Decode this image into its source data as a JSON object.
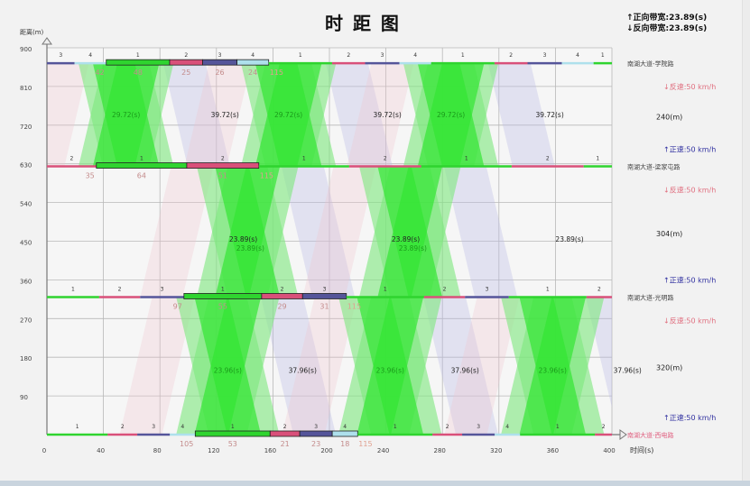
{
  "chart_data": {
    "type": "line",
    "title": "时 距 图",
    "xlabel": "时间(s)",
    "ylabel": "距离(m)",
    "xlim": [
      0,
      400
    ],
    "ylim": [
      0,
      900
    ],
    "xticks": [
      "0",
      "40",
      "80",
      "120",
      "160",
      "200",
      "240",
      "280",
      "320",
      "360",
      "400"
    ],
    "yticks": [
      "90",
      "180",
      "270",
      "360",
      "450",
      "540",
      "630",
      "720",
      "810",
      "900"
    ],
    "grid": true,
    "legend": {
      "placement": "top-right",
      "forward": "↑正向带宽:23.89(s)",
      "reverse": "↓反向带宽:23.89(s)"
    },
    "speed_mps": 13.889,
    "phase_colors": {
      "1": "#2fd42f",
      "2": "#d9507a",
      "3": "#55559a",
      "4": "#aee0ec"
    },
    "band_colors": {
      "bandwidth": "#33e633",
      "green_phase": "#7de87d",
      "reverse_other": "#b9b9e6",
      "forward_other": "#f0c4cc"
    },
    "intersections": [
      {
        "name": "南湖大道-西电路",
        "distance": 0,
        "offset": 105,
        "offset_label": "105",
        "cycle": 115,
        "cycle_label": "115",
        "name_color": "#e06080",
        "phases": [
          {
            "phase": "1",
            "duration": 53,
            "label": "53"
          },
          {
            "phase": "2",
            "duration": 21,
            "label": "21"
          },
          {
            "phase": "3",
            "duration": 23,
            "label": "23"
          },
          {
            "phase": "4",
            "duration": 18,
            "label": "18"
          }
        ]
      },
      {
        "name": "南湖大道-光明路",
        "distance": 320,
        "offset": 97,
        "offset_label": "97",
        "cycle": 115,
        "cycle_label": "115",
        "name_color": "#444444",
        "phases": [
          {
            "phase": "1",
            "duration": 55,
            "label": "55"
          },
          {
            "phase": "2",
            "duration": 29,
            "label": "29"
          },
          {
            "phase": "3",
            "duration": 31,
            "label": "31"
          }
        ]
      },
      {
        "name": "南湖大道-梁家屯路",
        "distance": 624,
        "offset": 35,
        "offset_label": "35",
        "cycle": 115,
        "cycle_label": "115",
        "name_color": "#444444",
        "phases": [
          {
            "phase": "1",
            "duration": 64,
            "label": "64"
          },
          {
            "phase": "2",
            "duration": 51,
            "label": "51"
          }
        ]
      },
      {
        "name": "南湖大道-学院路",
        "distance": 864,
        "offset": 42,
        "offset_label": "42",
        "cycle": 115,
        "cycle_label": "115",
        "name_color": "#444444",
        "phases": [
          {
            "phase": "1",
            "duration": 48,
            "label": "48"
          },
          {
            "phase": "2",
            "duration": 25,
            "label": "25"
          },
          {
            "phase": "3",
            "duration": 26,
            "label": "26"
          },
          {
            "phase": "4",
            "duration": 24,
            "label": "24"
          }
        ]
      }
    ],
    "segments": [
      {
        "from": 0,
        "to": 320,
        "length_label": "320(m)",
        "up_speed": "↑正速:50 km/h",
        "down_speed": "↓反速:50 km/h",
        "band_centers": [
          128,
          243,
          358
        ],
        "bandwidth": 23.96,
        "labels": [
          {
            "t": 128,
            "d": 150,
            "text": "23.96(s)",
            "color": "#1a9a1a"
          },
          {
            "t": 243,
            "d": 150,
            "text": "23.96(s)",
            "color": "#1a9a1a"
          },
          {
            "t": 358,
            "d": 150,
            "text": "23.96(s)",
            "color": "#1a9a1a"
          },
          {
            "t": 181,
            "d": 150,
            "text": "37.96(s)",
            "color": "#222222"
          },
          {
            "t": 296,
            "d": 150,
            "text": "37.96(s)",
            "color": "#222222"
          },
          {
            "t": 411,
            "d": 150,
            "text": "37.96(s)",
            "color": "#222222"
          }
        ]
      },
      {
        "from": 320,
        "to": 624,
        "length_label": "304(m)",
        "up_speed": "↑正速:50 km/h",
        "down_speed": "↓反速:50 km/h",
        "band_centers": [
          142,
          257
        ],
        "bandwidth": 23.89,
        "labels": [
          {
            "t": 139,
            "d": 455,
            "text": "23.89(s)",
            "color": "#222222"
          },
          {
            "t": 144,
            "d": 455,
            "text": "23.89(s)",
            "color": "#1a9a1a"
          },
          {
            "t": 254,
            "d": 455,
            "text": "23.89(s)",
            "color": "#222222"
          },
          {
            "t": 259,
            "d": 455,
            "text": "23.89(s)",
            "color": "#1a9a1a"
          },
          {
            "t": 370,
            "d": 455,
            "text": "23.89(s)",
            "color": "#222222"
          }
        ]
      },
      {
        "from": 624,
        "to": 864,
        "length_label": "240(m)",
        "up_speed": "↑正速:50 km/h",
        "down_speed": "↓反速:50 km/h",
        "band_centers": [
          56,
          171,
          286
        ],
        "bandwidth": 29.72,
        "labels": [
          {
            "t": 56,
            "d": 745,
            "text": "29.72(s)",
            "color": "#1a9a1a"
          },
          {
            "t": 171,
            "d": 745,
            "text": "29.72(s)",
            "color": "#1a9a1a"
          },
          {
            "t": 286,
            "d": 745,
            "text": "29.72(s)",
            "color": "#1a9a1a"
          },
          {
            "t": 126,
            "d": 745,
            "text": "39.72(s)",
            "color": "#222222"
          },
          {
            "t": 241,
            "d": 745,
            "text": "39.72(s)",
            "color": "#222222"
          },
          {
            "t": 356,
            "d": 745,
            "text": "39.72(s)",
            "color": "#222222"
          }
        ]
      }
    ]
  }
}
